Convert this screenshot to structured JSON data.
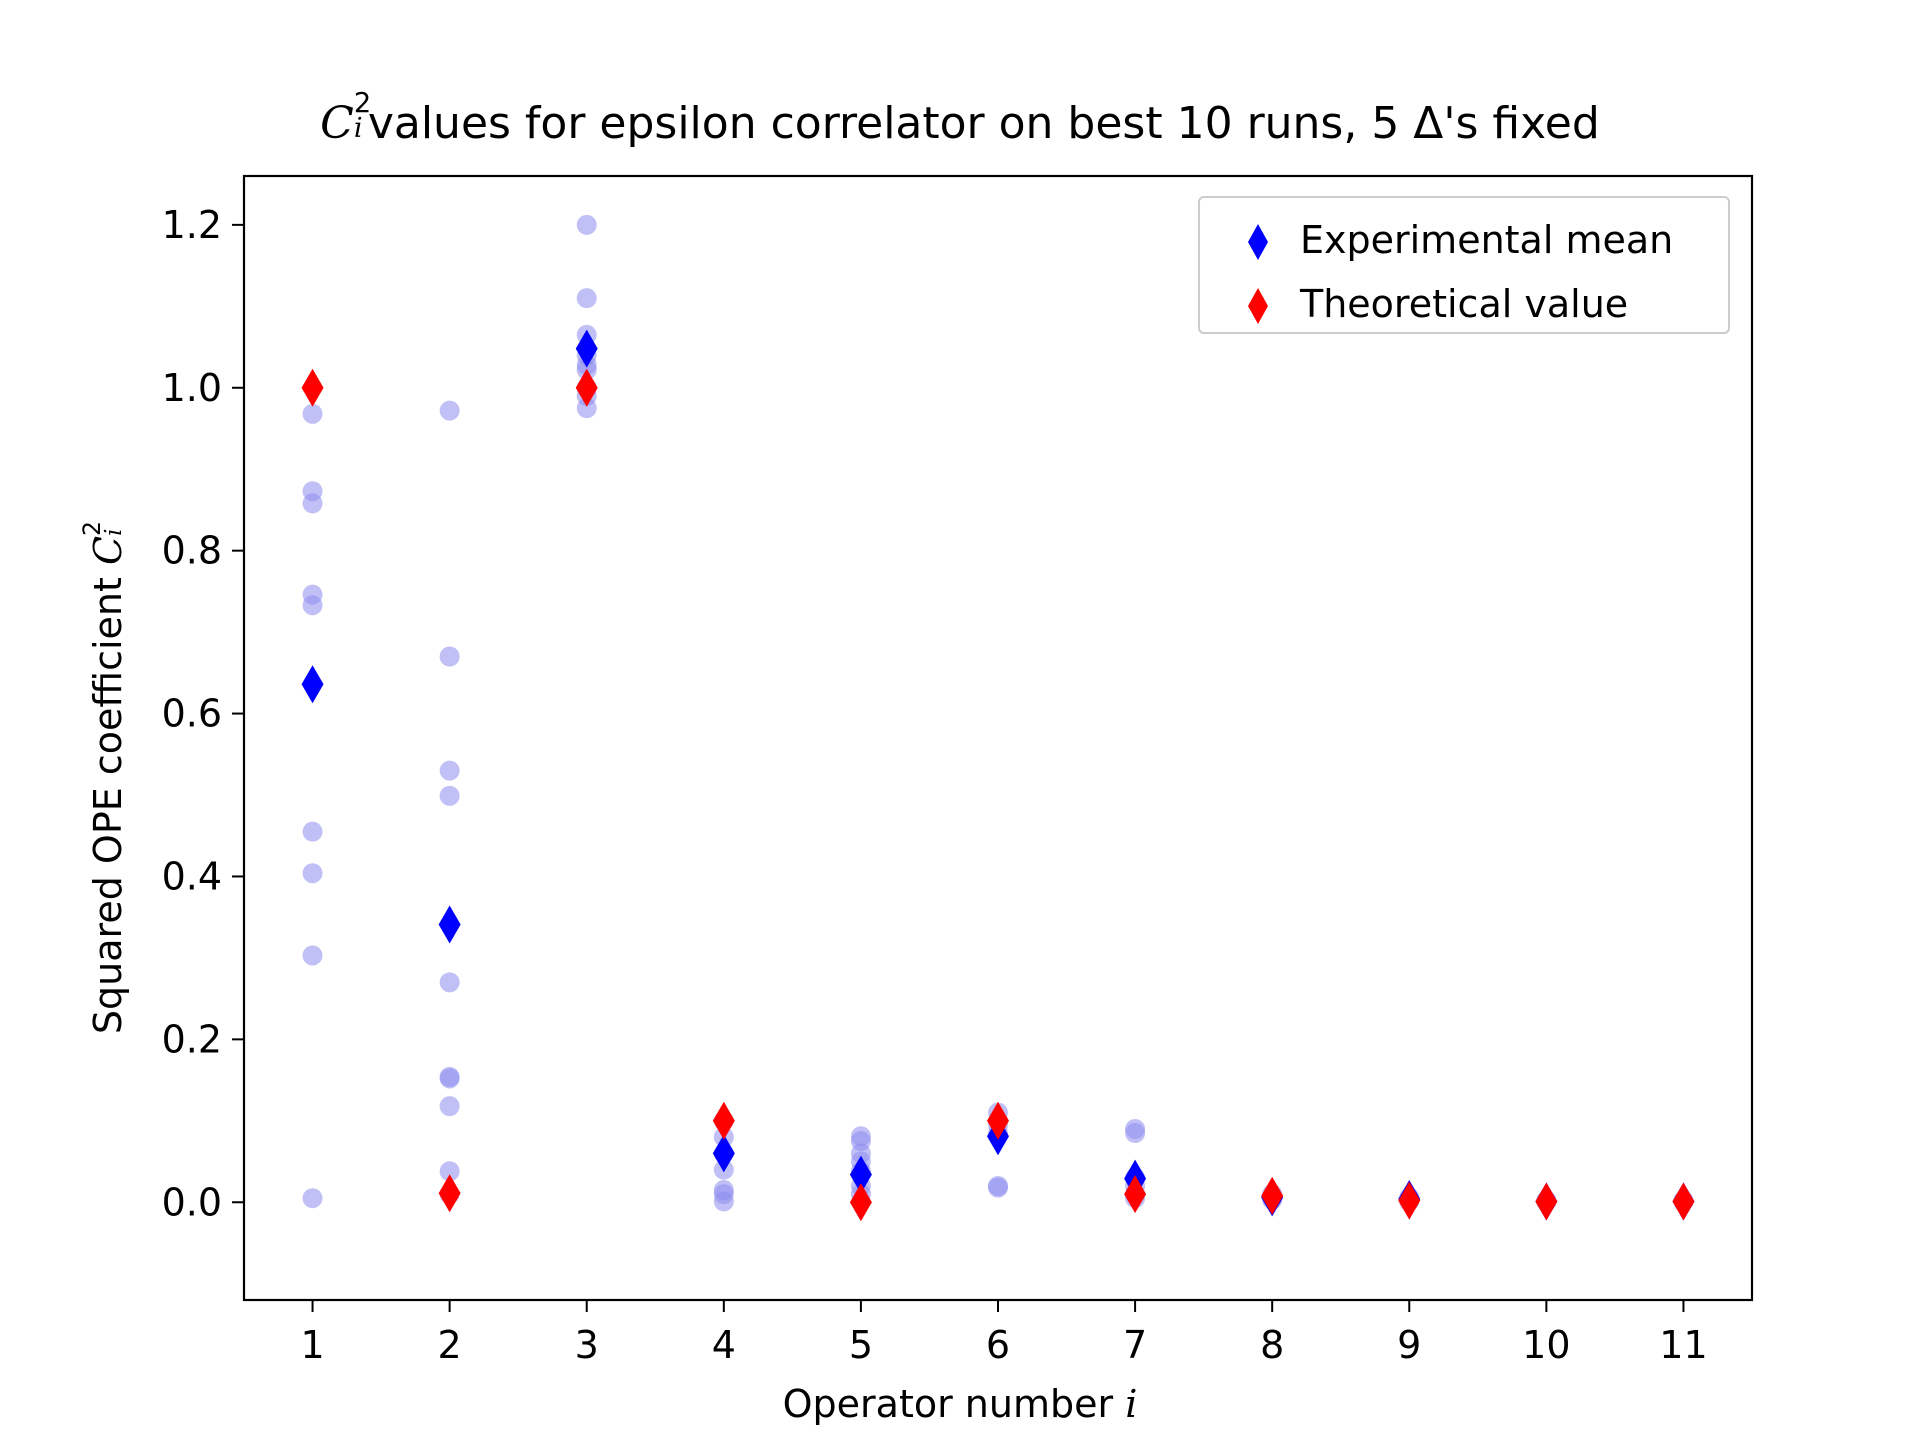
{
  "chart_data": {
    "type": "scatter",
    "title": {
      "symbol": "C",
      "subscript": "i",
      "superscript": "2",
      "text": " values for epsilon correlator on best 10 runs, 5 Δ's fixed"
    },
    "xlabel": {
      "text": "Operator number ",
      "var": "i"
    },
    "ylabel": {
      "text": "Squared OPE coefficient ",
      "symbol": "C",
      "subscript": "i",
      "superscript": "2"
    },
    "xlim": [
      0.5,
      11.5
    ],
    "ylim": [
      -0.12,
      1.26
    ],
    "xticks": [
      "1",
      "2",
      "3",
      "4",
      "5",
      "6",
      "7",
      "8",
      "9",
      "10",
      "11"
    ],
    "yticks": [
      "0.0",
      "0.2",
      "0.4",
      "0.6",
      "0.8",
      "1.0",
      "1.2"
    ],
    "grid": false,
    "legend_position": "top-right",
    "series": [
      {
        "name": "Experimental mean",
        "marker": "diamond",
        "color": "#0000ff",
        "points": [
          [
            1,
            0.636
          ],
          [
            2,
            0.341
          ],
          [
            3,
            1.048
          ],
          [
            4,
            0.06
          ],
          [
            5,
            0.034
          ],
          [
            6,
            0.081
          ],
          [
            7,
            0.029
          ],
          [
            8,
            0.006
          ],
          [
            9,
            0.004
          ],
          [
            10,
            0.001
          ],
          [
            11,
            0.001
          ]
        ]
      },
      {
        "name": "Theoretical value",
        "marker": "diamond",
        "color": "#ff0000",
        "points": [
          [
            1,
            1.0
          ],
          [
            2,
            0.011
          ],
          [
            3,
            1.0
          ],
          [
            4,
            0.1
          ],
          [
            5,
            0.0
          ],
          [
            6,
            0.1
          ],
          [
            7,
            0.01
          ],
          [
            8,
            0.008
          ],
          [
            9,
            0.002
          ],
          [
            10,
            0.001
          ],
          [
            11,
            0.001
          ]
        ]
      },
      {
        "marker": "circle",
        "color": "#8c8cf0",
        "points": [
          [
            1,
            0.968
          ],
          [
            1,
            0.873
          ],
          [
            1,
            0.858
          ],
          [
            1,
            0.746
          ],
          [
            1,
            0.733
          ],
          [
            1,
            0.455
          ],
          [
            1,
            0.404
          ],
          [
            1,
            0.303
          ],
          [
            1,
            0.005
          ],
          [
            2,
            0.972
          ],
          [
            2,
            0.67
          ],
          [
            2,
            0.53
          ],
          [
            2,
            0.499
          ],
          [
            2,
            0.27
          ],
          [
            2,
            0.154
          ],
          [
            2,
            0.152
          ],
          [
            2,
            0.118
          ],
          [
            2,
            0.038
          ],
          [
            2,
            0.01
          ],
          [
            3,
            1.2
          ],
          [
            3,
            1.11
          ],
          [
            3,
            1.065
          ],
          [
            3,
            1.04
          ],
          [
            3,
            1.028
          ],
          [
            3,
            1.022
          ],
          [
            3,
            1.0
          ],
          [
            3,
            0.99
          ],
          [
            3,
            0.975
          ],
          [
            4,
            0.1
          ],
          [
            4,
            0.08
          ],
          [
            4,
            0.06
          ],
          [
            4,
            0.04
          ],
          [
            4,
            0.015
          ],
          [
            4,
            0.01
          ],
          [
            4,
            0.001
          ],
          [
            5,
            0.081
          ],
          [
            5,
            0.075
          ],
          [
            5,
            0.06
          ],
          [
            5,
            0.05
          ],
          [
            5,
            0.038
          ],
          [
            5,
            0.02
          ],
          [
            5,
            0.01
          ],
          [
            6,
            0.11
          ],
          [
            6,
            0.095
          ],
          [
            6,
            0.085
          ],
          [
            6,
            0.02
          ],
          [
            6,
            0.018
          ],
          [
            7,
            0.09
          ],
          [
            7,
            0.085
          ],
          [
            7,
            0.03
          ],
          [
            7,
            0.02
          ],
          [
            7,
            0.01
          ],
          [
            7,
            0.005
          ],
          [
            8,
            0.01
          ],
          [
            8,
            0.005
          ],
          [
            8,
            0.003
          ],
          [
            9,
            0.006
          ],
          [
            9,
            0.003
          ],
          [
            9,
            0.001
          ],
          [
            10,
            0.002
          ],
          [
            10,
            0.001
          ],
          [
            11,
            0.002
          ],
          [
            11,
            0.001
          ]
        ]
      }
    ]
  }
}
